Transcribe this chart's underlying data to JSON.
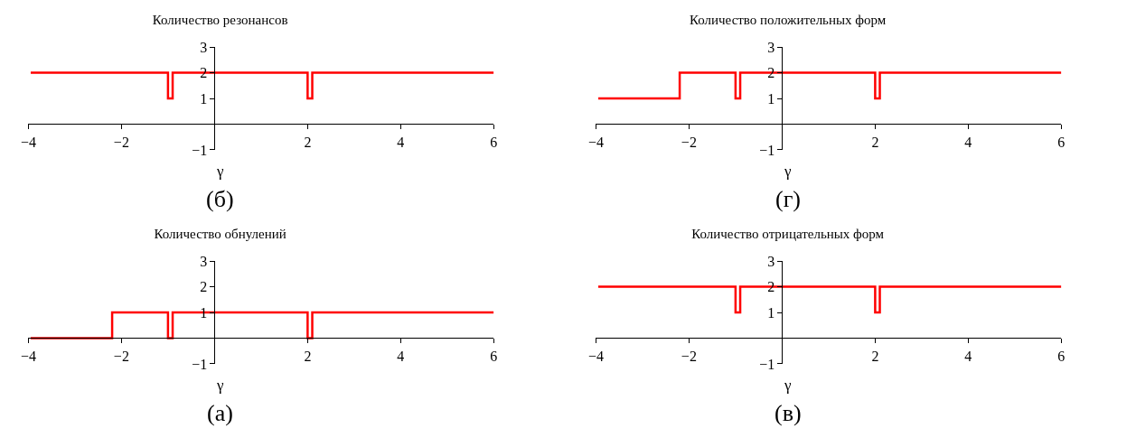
{
  "chart_data": [
    {
      "type": "step",
      "title": "Количество резонансов",
      "xlabel": "γ",
      "annotations": [
        "(б)"
      ],
      "x": [
        -3.95,
        -1,
        -0.9,
        2,
        2.1,
        6
      ],
      "series": [
        {
          "color": "#ff0000",
          "values": [
            2,
            1,
            2,
            1,
            2,
            2
          ]
        }
      ],
      "xlim": [
        -4,
        6
      ],
      "xticks": [
        -4,
        -2,
        2,
        4,
        6
      ],
      "ylim": [
        -1,
        3
      ],
      "yticks": [
        -1,
        1,
        2,
        3
      ]
    },
    {
      "type": "step",
      "title": "Количество положительных форм",
      "xlabel": "γ",
      "annotations": [
        "(г)"
      ],
      "x": [
        -3.95,
        -2.2,
        -1,
        -0.9,
        2,
        2.1,
        6
      ],
      "series": [
        {
          "color": "#ff0000",
          "values": [
            1,
            2,
            1,
            2,
            1,
            2,
            2
          ]
        }
      ],
      "xlim": [
        -4,
        6
      ],
      "xticks": [
        -4,
        -2,
        2,
        4,
        6
      ],
      "ylim": [
        -1,
        3
      ],
      "yticks": [
        -1,
        1,
        2,
        3
      ]
    },
    {
      "type": "step",
      "title": "Количество обнулений",
      "xlabel": "γ",
      "annotations": [
        "(а)"
      ],
      "x": [
        -3.95,
        -2.2,
        -1,
        -0.9,
        2,
        2.1,
        6
      ],
      "series": [
        {
          "color": "#ff0000",
          "values": [
            0,
            1,
            0,
            1,
            0,
            1,
            1
          ]
        }
      ],
      "xlim": [
        -4,
        6
      ],
      "xticks": [
        -4,
        -2,
        2,
        4,
        6
      ],
      "ylim": [
        -1,
        3
      ],
      "yticks": [
        -1,
        1,
        2,
        3
      ]
    },
    {
      "type": "step",
      "title": "Количество отрицательных форм",
      "xlabel": "γ",
      "annotations": [
        "(в)"
      ],
      "x": [
        -3.95,
        -1,
        -0.9,
        2,
        2.1,
        6
      ],
      "series": [
        {
          "color": "#ff0000",
          "values": [
            2,
            1,
            2,
            1,
            2,
            2
          ]
        }
      ],
      "xlim": [
        -4,
        6
      ],
      "xticks": [
        -4,
        -2,
        2,
        4,
        6
      ],
      "ylim": [
        -1,
        3
      ],
      "yticks": [
        -1,
        1,
        2,
        3
      ]
    }
  ]
}
